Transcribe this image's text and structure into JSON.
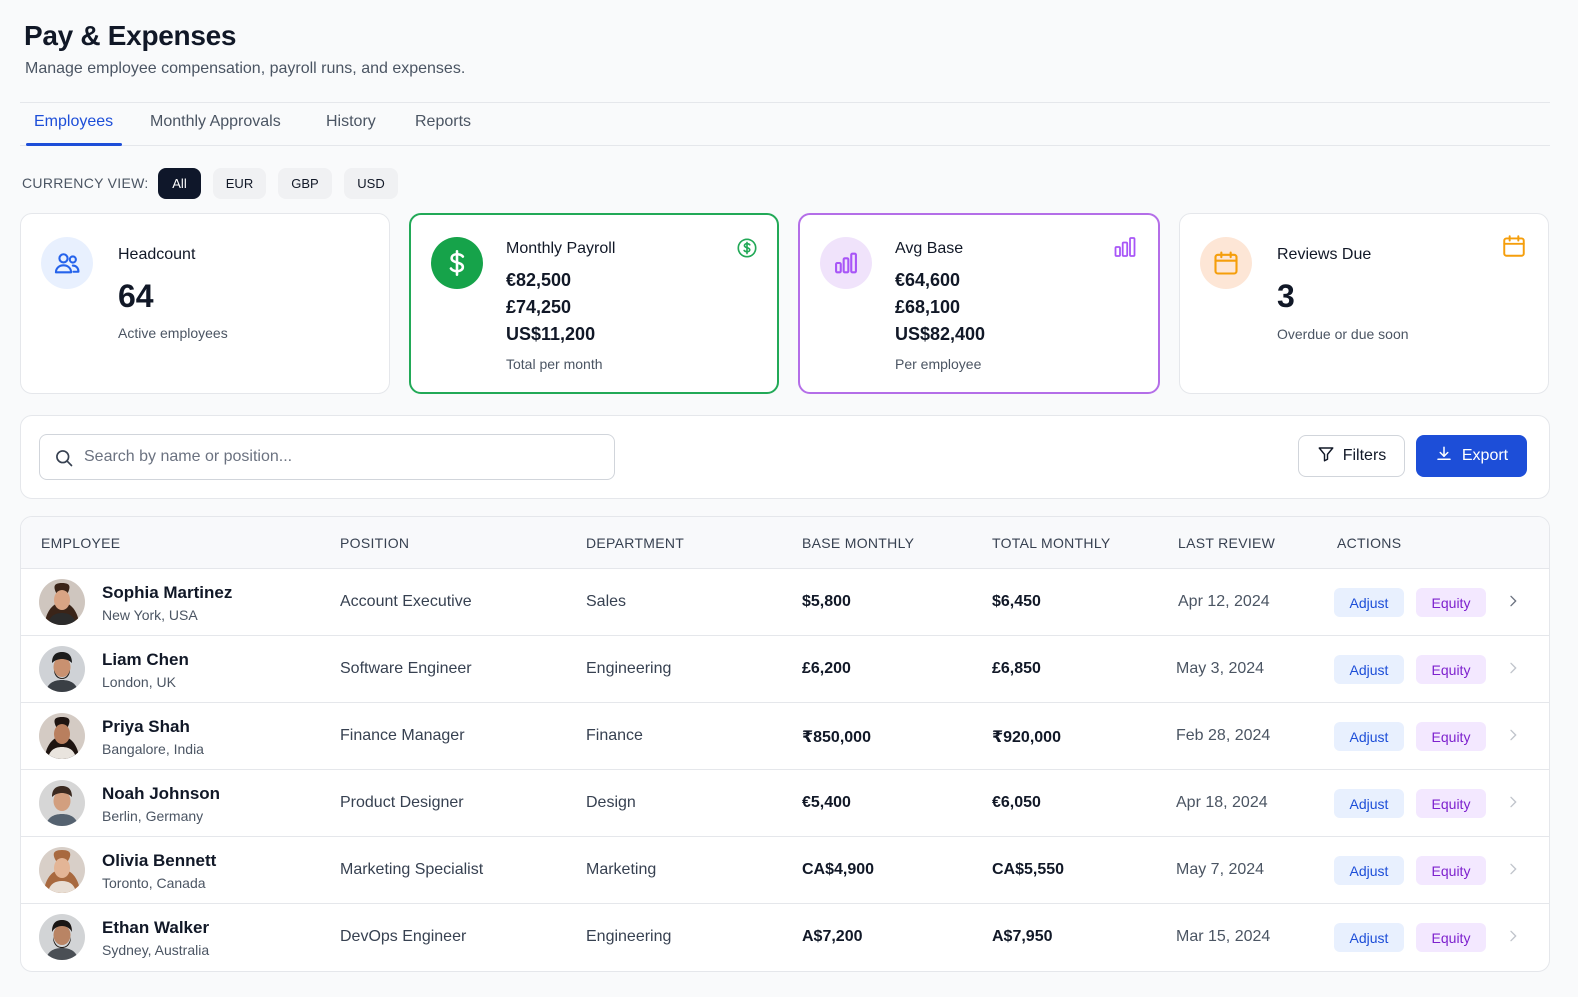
{
  "header": {
    "title": "Pay & Expenses",
    "subtitle": "Manage  employee compensation, payroll runs, and expenses."
  },
  "tabs": [
    {
      "label": "Employees",
      "active": true
    },
    {
      "label": "Monthly Approvals",
      "active": false
    },
    {
      "label": "History",
      "active": false
    },
    {
      "label": "Reports",
      "active": false
    }
  ],
  "currency_view": {
    "label": "CURRENCY VIEW:",
    "options": [
      "All",
      "EUR",
      "GBP",
      "USD"
    ],
    "selected": "All"
  },
  "cards": {
    "headcount": {
      "label": "Headcount",
      "value": "64",
      "note": "Active employees",
      "icon": "users-icon"
    },
    "payroll": {
      "label": "Monthly Payroll",
      "lines": [
        "€82,500",
        "£74,250",
        "US$11,200"
      ],
      "note": "Total per month",
      "icon": "dollar-icon",
      "accent": "#22a957"
    },
    "avg_base": {
      "label": "Avg Base",
      "lines": [
        "€64,600",
        "£68,100",
        "US$82,400"
      ],
      "note": "Per employee",
      "icon": "bar-chart-icon",
      "accent": "#b46ee8"
    },
    "reviews": {
      "label": "Reviews Due",
      "value": "3",
      "note": "Overdue or due soon",
      "icon": "calendar-icon",
      "accent": "#f59e0b"
    }
  },
  "toolbar": {
    "search_placeholder": "Search by name or position...",
    "filters_label": "Filters",
    "export_label": "Export"
  },
  "table": {
    "columns": [
      "EMPLOYEE",
      "POSITION",
      "DEPARTMENT",
      "BASE MONTHLY",
      "TOTAL MONTHLY",
      "LAST REVIEW",
      "ACTIONS"
    ],
    "action_labels": {
      "adjust": "Adjust",
      "equity": "Equity"
    },
    "rows": [
      {
        "name": "Sophia Martinez",
        "location": "New York, USA",
        "position": "Account Executive",
        "department": "Sales",
        "base": "$5,800",
        "total": "$6,450",
        "last_review": "Apr 12, 2024"
      },
      {
        "name": "Liam Chen",
        "location": "London, UK",
        "position": "Software Engineer",
        "department": "Engineering",
        "base": "£6,200",
        "total": "£6,850",
        "last_review": "May 3, 2024"
      },
      {
        "name": "Priya Shah",
        "location": "Bangalore, India",
        "position": "Finance Manager",
        "department": "Finance",
        "base": "₹850,000",
        "total": "₹920,000",
        "last_review": "Feb 28, 2024"
      },
      {
        "name": "Noah Johnson",
        "location": "Berlin, Germany",
        "position": "Product Designer",
        "department": "Design",
        "base": "€5,400",
        "total": "€6,050",
        "last_review": "Apr 18, 2024"
      },
      {
        "name": "Olivia Bennett",
        "location": "Toronto, Canada",
        "position": "Marketing Specialist",
        "department": "Marketing",
        "base": "CA$4,900",
        "total": "CA$5,550",
        "last_review": "May 7, 2024"
      },
      {
        "name": "Ethan Walker",
        "location": "Sydney, Australia",
        "position": "DevOps  Engineer",
        "department": "Engineering",
        "base": "A$7,200",
        "total": "A$7,950",
        "last_review": "Mar 15, 2024"
      }
    ]
  },
  "colors": {
    "primary": "#1d4ed8",
    "green": "#22a957",
    "purple": "#b46ee8",
    "orange": "#f59e0b",
    "dark": "#0f172a"
  }
}
